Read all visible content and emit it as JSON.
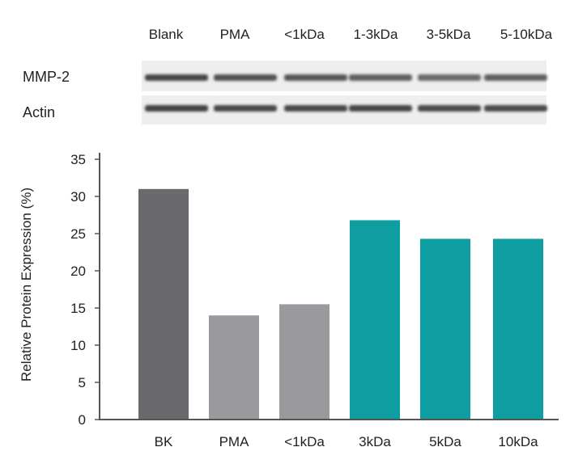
{
  "blot": {
    "lane_labels": [
      "Blank",
      "PMA",
      "<1kDa",
      "1-3kDa",
      "3-5kDa",
      "5-10kDa"
    ],
    "rows": [
      {
        "label": "MMP-2",
        "band_intensity": [
          0.85,
          0.8,
          0.78,
          0.72,
          0.68,
          0.72
        ]
      },
      {
        "label": "Actin",
        "band_intensity": [
          0.88,
          0.85,
          0.85,
          0.86,
          0.84,
          0.84
        ]
      }
    ]
  },
  "chart_data": {
    "type": "bar",
    "title": "",
    "xlabel": "",
    "ylabel": "Relative Protein Expression (%)",
    "categories": [
      "BK",
      "PMA",
      "<1kDa",
      "3kDa",
      "5kDa",
      "10kDa"
    ],
    "values": [
      31,
      14,
      15.5,
      26.8,
      24.3,
      24.3
    ],
    "ylim": [
      0,
      35
    ],
    "yticks": [
      0,
      5,
      10,
      15,
      20,
      25,
      30,
      35
    ],
    "grid": false,
    "colors": [
      "#6a6a6e",
      "#9a9a9e",
      "#9a9a9e",
      "#0e9ea1",
      "#0e9ea1",
      "#0e9ea1"
    ]
  }
}
